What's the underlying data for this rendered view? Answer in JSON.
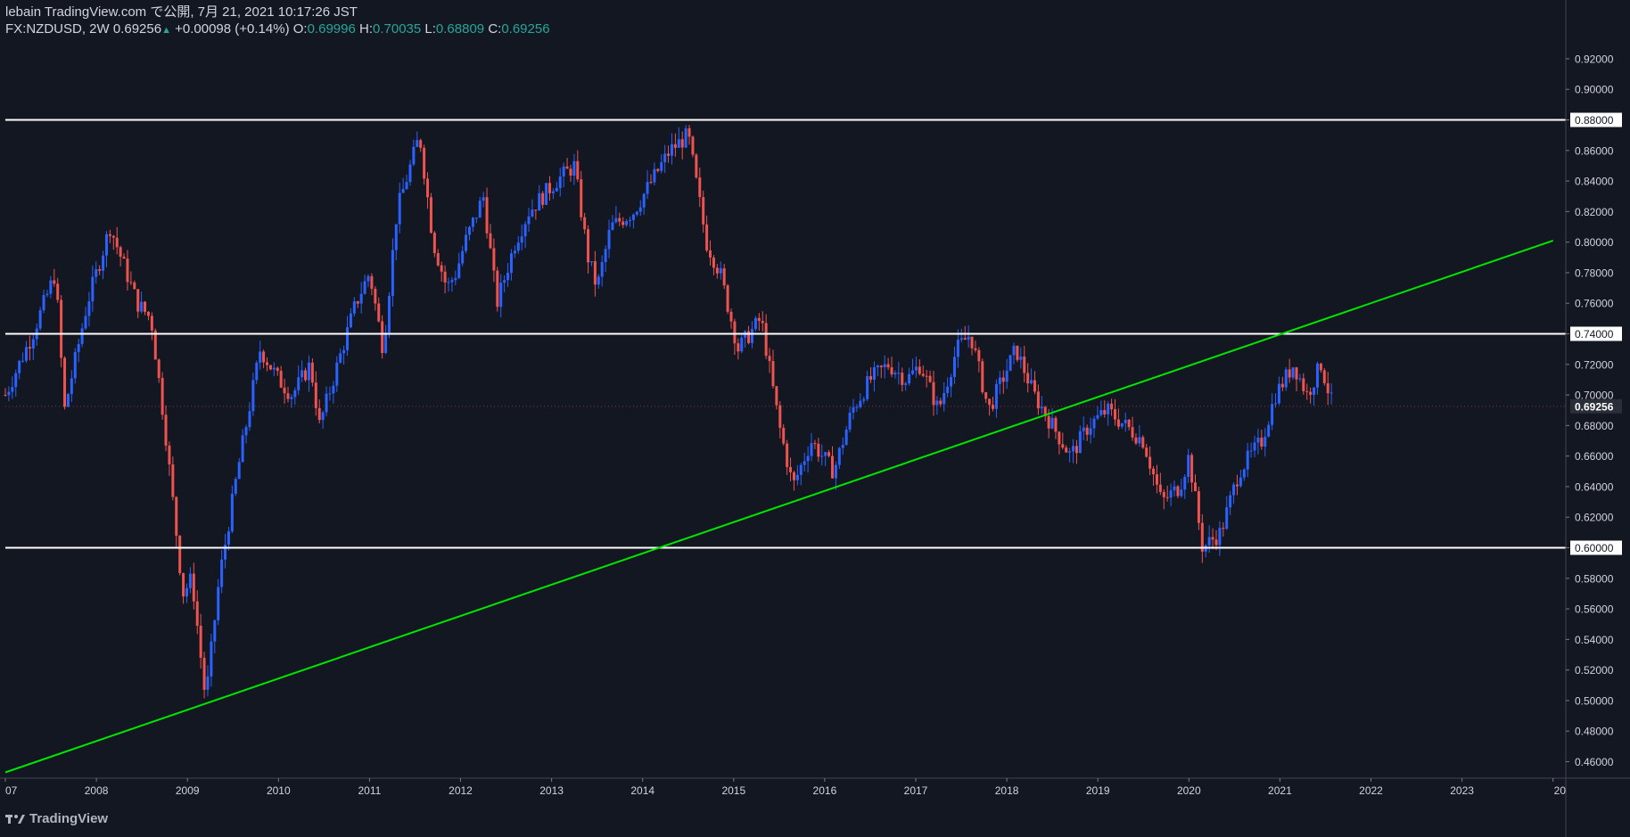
{
  "header": {
    "publisher_line": "lebain TradingView.com で公開, 7月 21, 2021 10:17:26 JST",
    "symbol_label": "FX:NZDUSD, 2W",
    "last_price": "0.69256",
    "change_arrow": "▲",
    "change": "+0.00098 (+0.14%)",
    "o_label": "O:",
    "o_value": "0.69996",
    "h_label": "H:",
    "h_value": "0.70035",
    "l_label": "L:",
    "l_value": "0.68809",
    "c_label": "C:",
    "c_value": "0.69256"
  },
  "footer": {
    "brand": "TradingView"
  },
  "colors": {
    "background": "#131722",
    "up_candle": "#2962ff",
    "down_candle": "#ef5350",
    "trendline": "#00e600",
    "hline": "#ffffff",
    "axis_text": "#d1d4dc",
    "price_tag_bg": "#2a2e39"
  },
  "chart_data": {
    "type": "candlestick",
    "symbol": "FX:NZDUSD",
    "interval": "2W",
    "x_range": [
      2007.0,
      2024.0
    ],
    "y_range": [
      0.45,
      0.93
    ],
    "y_ticks": [
      "0.46000",
      "0.48000",
      "0.50000",
      "0.52000",
      "0.54000",
      "0.56000",
      "0.58000",
      "0.60000",
      "0.62000",
      "0.64000",
      "0.66000",
      "0.68000",
      "0.70000",
      "0.72000",
      "0.74000",
      "0.76000",
      "0.78000",
      "0.80000",
      "0.82000",
      "0.84000",
      "0.86000",
      "0.88000",
      "0.90000",
      "0.92000"
    ],
    "x_ticks": [
      "07",
      "2008",
      "2009",
      "2010",
      "2011",
      "2012",
      "2013",
      "2014",
      "2015",
      "2016",
      "2017",
      "2018",
      "2019",
      "2020",
      "2021",
      "2022",
      "2023",
      "20"
    ],
    "horizontal_lines": [
      0.88,
      0.74,
      0.6
    ],
    "trendline": {
      "x": [
        2007.0,
        2024.0
      ],
      "y": [
        0.453,
        0.801
      ]
    },
    "last_price_tag": "0.69256",
    "close_path": [
      [
        2007.0,
        0.7
      ],
      [
        2007.3,
        0.74
      ],
      [
        2007.55,
        0.78
      ],
      [
        2007.65,
        0.69
      ],
      [
        2007.9,
        0.76
      ],
      [
        2008.15,
        0.81
      ],
      [
        2008.45,
        0.76
      ],
      [
        2008.6,
        0.75
      ],
      [
        2008.75,
        0.68
      ],
      [
        2008.95,
        0.57
      ],
      [
        2009.05,
        0.58
      ],
      [
        2009.2,
        0.5
      ],
      [
        2009.35,
        0.58
      ],
      [
        2009.55,
        0.65
      ],
      [
        2009.8,
        0.73
      ],
      [
        2010.0,
        0.71
      ],
      [
        2010.15,
        0.7
      ],
      [
        2010.35,
        0.72
      ],
      [
        2010.45,
        0.68
      ],
      [
        2010.6,
        0.71
      ],
      [
        2010.85,
        0.76
      ],
      [
        2011.0,
        0.78
      ],
      [
        2011.15,
        0.73
      ],
      [
        2011.3,
        0.82
      ],
      [
        2011.55,
        0.87
      ],
      [
        2011.7,
        0.8
      ],
      [
        2011.85,
        0.77
      ],
      [
        2011.95,
        0.78
      ],
      [
        2012.05,
        0.8
      ],
      [
        2012.25,
        0.83
      ],
      [
        2012.4,
        0.76
      ],
      [
        2012.6,
        0.8
      ],
      [
        2012.75,
        0.82
      ],
      [
        2013.05,
        0.84
      ],
      [
        2013.25,
        0.85
      ],
      [
        2013.4,
        0.79
      ],
      [
        2013.5,
        0.77
      ],
      [
        2013.65,
        0.81
      ],
      [
        2013.9,
        0.82
      ],
      [
        2014.1,
        0.84
      ],
      [
        2014.3,
        0.86
      ],
      [
        2014.5,
        0.87
      ],
      [
        2014.7,
        0.8
      ],
      [
        2014.85,
        0.78
      ],
      [
        2015.05,
        0.73
      ],
      [
        2015.3,
        0.75
      ],
      [
        2015.5,
        0.68
      ],
      [
        2015.65,
        0.64
      ],
      [
        2015.85,
        0.67
      ],
      [
        2016.1,
        0.65
      ],
      [
        2016.3,
        0.69
      ],
      [
        2016.5,
        0.71
      ],
      [
        2016.7,
        0.72
      ],
      [
        2016.9,
        0.71
      ],
      [
        2017.05,
        0.72
      ],
      [
        2017.25,
        0.69
      ],
      [
        2017.45,
        0.73
      ],
      [
        2017.6,
        0.74
      ],
      [
        2017.8,
        0.69
      ],
      [
        2017.95,
        0.71
      ],
      [
        2018.1,
        0.73
      ],
      [
        2018.3,
        0.7
      ],
      [
        2018.5,
        0.68
      ],
      [
        2018.7,
        0.66
      ],
      [
        2018.9,
        0.68
      ],
      [
        2019.1,
        0.69
      ],
      [
        2019.3,
        0.68
      ],
      [
        2019.5,
        0.67
      ],
      [
        2019.7,
        0.63
      ],
      [
        2019.9,
        0.64
      ],
      [
        2020.0,
        0.66
      ],
      [
        2020.15,
        0.6
      ],
      [
        2020.35,
        0.61
      ],
      [
        2020.55,
        0.65
      ],
      [
        2020.8,
        0.67
      ],
      [
        2020.95,
        0.7
      ],
      [
        2021.15,
        0.72
      ],
      [
        2021.3,
        0.7
      ],
      [
        2021.45,
        0.72
      ],
      [
        2021.58,
        0.6926
      ]
    ]
  }
}
